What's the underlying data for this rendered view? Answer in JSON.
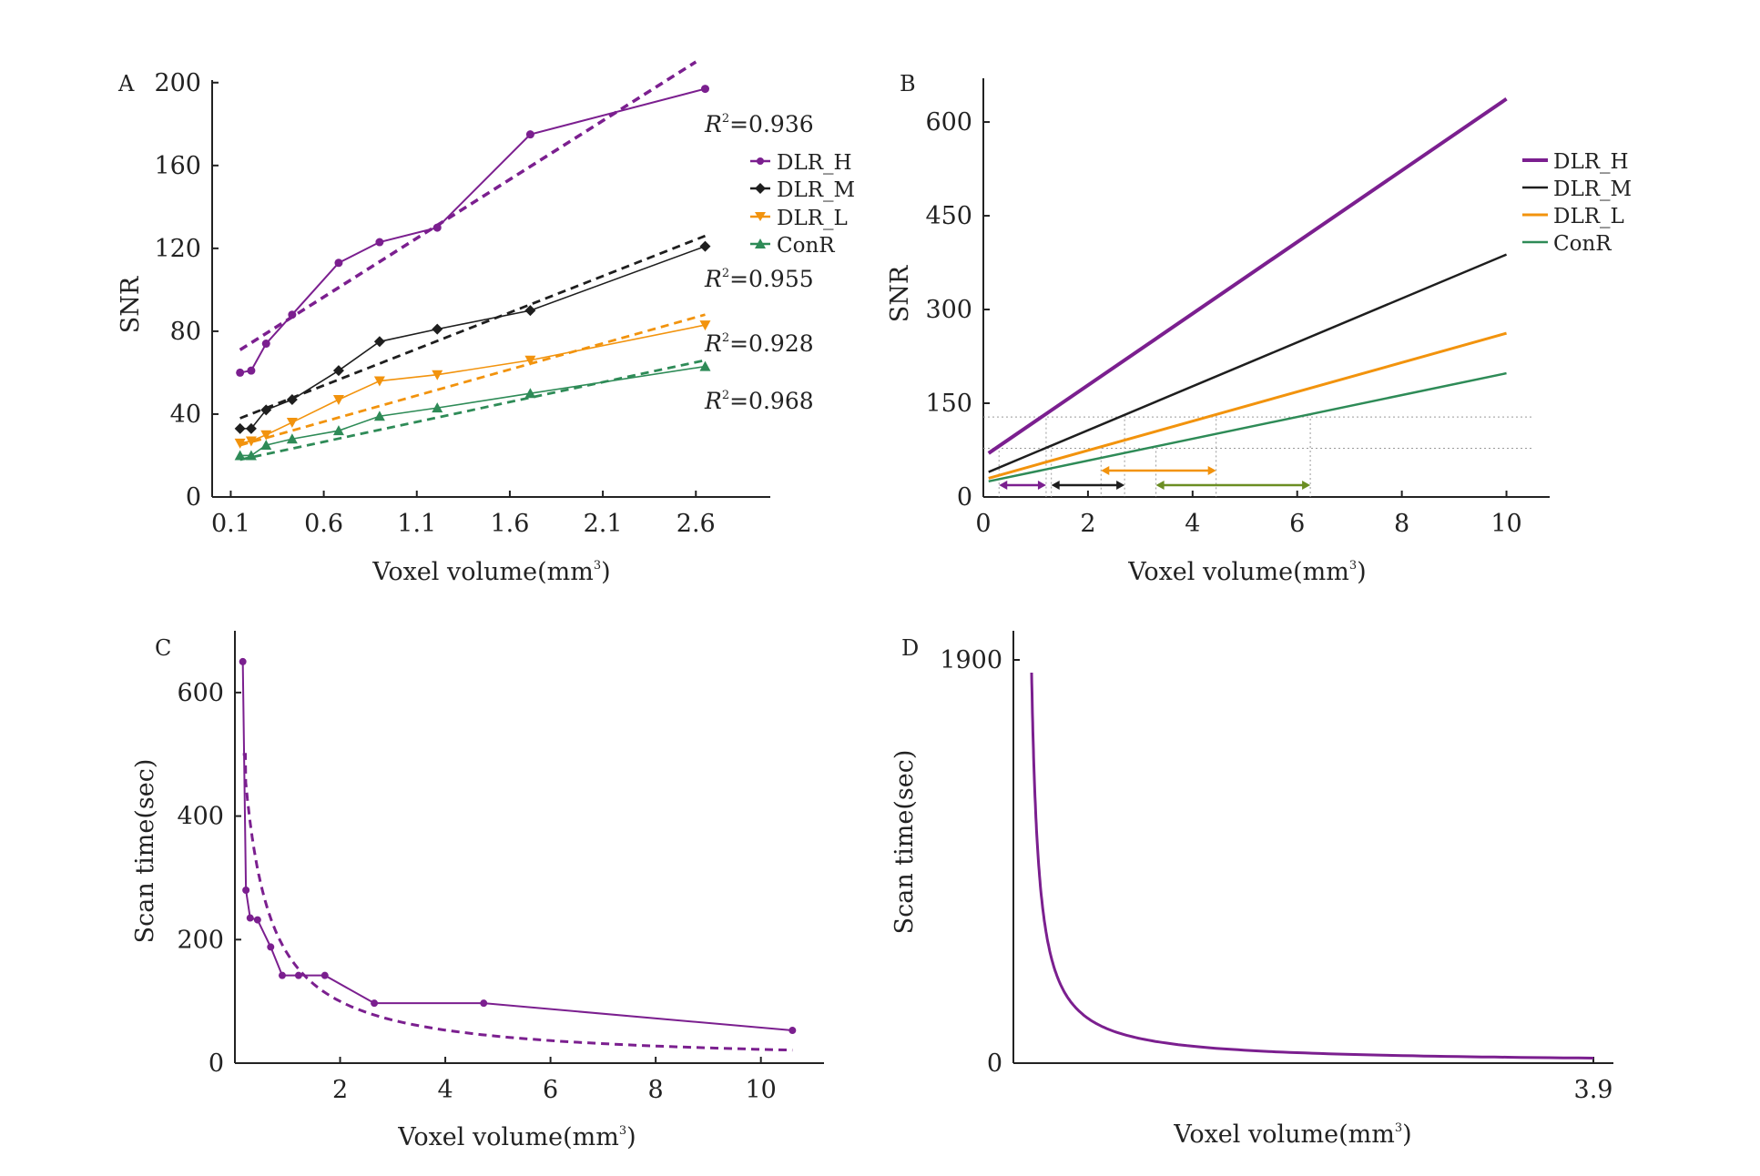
{
  "colors": {
    "DLR_H": "#7b1f8f",
    "DLR_M": "#1e1e1e",
    "DLR_L": "#f2930d",
    "ConR": "#2e8b57",
    "axis": "#222222",
    "guide": "#9a9a9a"
  },
  "chart_data": [
    {
      "panel": "A",
      "type": "line",
      "xlabel": "Voxel volume(mm",
      "xlabel_sup": "3",
      "xlabel_close": ")",
      "ylabel": "SNR",
      "xlim": [
        0.0,
        3.0
      ],
      "ylim": [
        0,
        210
      ],
      "xticks": [
        0.1,
        0.6,
        1.1,
        1.6,
        2.1,
        2.6
      ],
      "xtick_labels": [
        "0.1",
        "0.6",
        "1.1",
        "1.6",
        "2.1",
        "2.6"
      ],
      "yticks": [
        0,
        40,
        80,
        120,
        160,
        200
      ],
      "ytick_labels": [
        "0",
        "40",
        "80",
        "120",
        "160",
        "200"
      ],
      "x": [
        0.15,
        0.21,
        0.29,
        0.43,
        0.68,
        0.9,
        1.21,
        1.71,
        2.65
      ],
      "legend": [
        "DLR_H",
        "DLR_M",
        "DLR_L",
        "ConR"
      ],
      "series": [
        {
          "name": "DLR_H",
          "marker": "circle",
          "values": [
            60,
            61,
            74,
            88,
            113,
            123,
            130,
            175,
            197
          ],
          "fit": [
            [
              0.15,
              71
            ],
            [
              2.6,
              210
            ]
          ],
          "r2_label": "R",
          "r2_sup": "2",
          "r2_text": "=0.936"
        },
        {
          "name": "DLR_M",
          "marker": "diamond",
          "values": [
            33,
            33,
            42,
            47,
            61,
            75,
            81,
            90,
            121
          ],
          "fit": [
            [
              0.15,
              38
            ],
            [
              2.65,
              126
            ]
          ],
          "r2_label": "R",
          "r2_sup": "2",
          "r2_text": "=0.955"
        },
        {
          "name": "DLR_L",
          "marker": "triangle-down",
          "values": [
            26,
            27,
            30,
            36,
            47,
            56,
            59,
            66,
            83
          ],
          "fit": [
            [
              0.15,
              25
            ],
            [
              2.65,
              88
            ]
          ],
          "r2_label": "R",
          "r2_sup": "2",
          "r2_text": "=0.928"
        },
        {
          "name": "ConR",
          "marker": "triangle-up",
          "values": [
            20,
            20,
            25,
            28,
            32,
            39,
            43,
            50,
            63
          ],
          "fit": [
            [
              0.15,
              18
            ],
            [
              2.65,
              66
            ]
          ],
          "r2_label": "R",
          "r2_sup": "2",
          "r2_text": "=0.968"
        }
      ]
    },
    {
      "panel": "B",
      "type": "line",
      "xlabel": "Voxel volume(mm",
      "xlabel_sup": "3",
      "xlabel_close": ")",
      "ylabel": "SNR",
      "xlim": [
        0,
        11
      ],
      "ylim": [
        0,
        670
      ],
      "xticks": [
        0,
        2,
        4,
        6,
        8,
        10
      ],
      "xtick_labels": [
        "0",
        "2",
        "4",
        "6",
        "8",
        "10"
      ],
      "yticks": [
        0,
        150,
        300,
        450,
        600
      ],
      "ytick_labels": [
        "0",
        "150",
        "300",
        "450",
        "600"
      ],
      "legend": [
        "DLR_H",
        "DLR_M",
        "DLR_L",
        "ConR"
      ],
      "series": [
        {
          "name": "DLR_H",
          "line": [
            [
              0.1,
              70
            ],
            [
              10,
              637
            ]
          ],
          "range": [
            0.3,
            1.2
          ]
        },
        {
          "name": "DLR_M",
          "line": [
            [
              0.1,
              40
            ],
            [
              10,
              388
            ]
          ],
          "range": [
            1.3,
            2.7
          ]
        },
        {
          "name": "DLR_L",
          "line": [
            [
              0.1,
              30
            ],
            [
              10,
              262
            ]
          ],
          "range": [
            2.25,
            4.45
          ]
        },
        {
          "name": "ConR",
          "line": [
            [
              0.1,
              25
            ],
            [
              10,
              198
            ]
          ],
          "range": [
            3.3,
            6.25
          ]
        }
      ],
      "guide_levels": [
        128,
        78
      ]
    },
    {
      "panel": "C",
      "type": "line",
      "xlabel": "Voxel volume(mm",
      "xlabel_sup": "3",
      "xlabel_close": ")",
      "ylabel": "Scan time(sec)",
      "xlim": [
        0,
        11.2
      ],
      "ylim": [
        0,
        700
      ],
      "xticks": [
        2,
        4,
        6,
        8,
        10
      ],
      "xtick_labels": [
        "2",
        "4",
        "6",
        "8",
        "10"
      ],
      "yticks": [
        0,
        200,
        400,
        600
      ],
      "ytick_labels": [
        "0",
        "200",
        "400",
        "600"
      ],
      "series": [
        {
          "name": "DLR_H",
          "x": [
            0.15,
            0.21,
            0.29,
            0.43,
            0.68,
            0.9,
            1.21,
            1.71,
            2.65,
            4.73,
            10.6
          ],
          "values": [
            650,
            280,
            235,
            232,
            188,
            142,
            142,
            142,
            97,
            97,
            53
          ],
          "fit_curve": {
            "k": 230,
            "from": 0.15,
            "to": 10.6
          }
        }
      ]
    },
    {
      "panel": "D",
      "type": "line",
      "xlabel": "Voxel volume(mm",
      "xlabel_sup": "3",
      "xlabel_close": ")",
      "ylabel": "Scan time(sec)",
      "xlim": [
        0,
        3.9
      ],
      "ylim": [
        0,
        1900
      ],
      "xticks": [
        3.9
      ],
      "xtick_labels": [
        "3.9"
      ],
      "yticks": [
        0,
        1900
      ],
      "ytick_labels": [
        "0",
        "1900"
      ],
      "series": [
        {
          "name": "DLR_H",
          "fit_curve": {
            "k": 92,
            "from": 0.05,
            "to": 3.9
          }
        }
      ]
    }
  ]
}
